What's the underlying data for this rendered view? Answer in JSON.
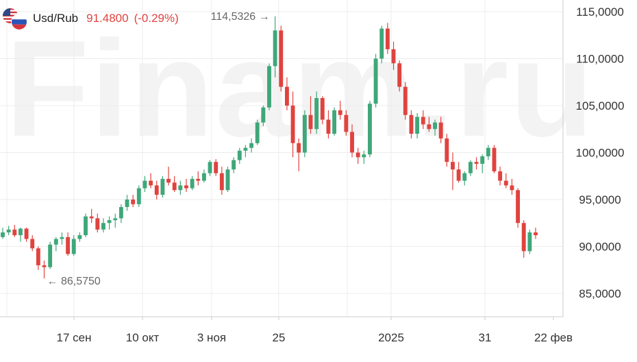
{
  "watermark": "Finam.ru",
  "header": {
    "pair": "Usd/Rub",
    "price": "91.4800",
    "change": "(-0.29%)"
  },
  "colors": {
    "up": "#3fa77a",
    "down": "#e0433f",
    "grid": "#ececec",
    "axis": "#cccccc"
  },
  "icons": {
    "us_flag": "us-flag-icon",
    "ru_flag": "ru-flag-icon"
  },
  "chart_data": {
    "type": "candlestick",
    "x_tick_labels": [
      "17 сен",
      "10 окт",
      "3 ноя",
      "25",
      "2025",
      "31",
      "22 фев"
    ],
    "y_tick_labels": [
      "115,0000",
      "110,0000",
      "105,0000",
      "100,0000",
      "95,0000",
      "90,0000",
      "85,0000"
    ],
    "ylim": [
      83,
      116
    ],
    "annotations": {
      "max": "114,5326",
      "min": "86,5750"
    },
    "candles": [
      [
        91.0,
        92.0,
        90.8,
        91.5
      ],
      [
        91.5,
        92.2,
        91.2,
        91.8
      ],
      [
        91.8,
        92.3,
        91.0,
        91.2
      ],
      [
        91.2,
        92.0,
        90.5,
        91.9
      ],
      [
        91.9,
        92.0,
        90.5,
        90.8
      ],
      [
        90.8,
        91.2,
        89.5,
        89.8
      ],
      [
        89.8,
        90.0,
        87.5,
        88.0
      ],
      [
        88.0,
        88.5,
        86.6,
        87.8
      ],
      [
        87.8,
        90.5,
        87.6,
        90.2
      ],
      [
        90.2,
        91.0,
        89.5,
        90.8
      ],
      [
        90.8,
        91.5,
        90.2,
        91.0
      ],
      [
        91.0,
        91.5,
        89.0,
        89.2
      ],
      [
        89.2,
        91.2,
        89.0,
        90.8
      ],
      [
        90.8,
        91.5,
        90.5,
        91.2
      ],
      [
        91.2,
        93.5,
        91.0,
        93.2
      ],
      [
        93.2,
        94.0,
        92.5,
        93.0
      ],
      [
        93.0,
        93.5,
        91.5,
        91.8
      ],
      [
        91.8,
        93.0,
        91.5,
        92.5
      ],
      [
        92.5,
        93.2,
        91.8,
        92.8
      ],
      [
        92.8,
        93.5,
        92.0,
        93.0
      ],
      [
        93.0,
        94.5,
        92.5,
        94.2
      ],
      [
        94.2,
        95.5,
        93.8,
        95.0
      ],
      [
        95.0,
        95.5,
        94.2,
        94.5
      ],
      [
        94.5,
        96.5,
        94.2,
        96.2
      ],
      [
        96.2,
        97.5,
        95.8,
        97.0
      ],
      [
        97.0,
        97.8,
        96.2,
        96.5
      ],
      [
        96.5,
        97.0,
        95.0,
        95.5
      ],
      [
        95.5,
        97.5,
        95.2,
        97.2
      ],
      [
        97.2,
        98.5,
        96.5,
        96.8
      ],
      [
        96.8,
        97.5,
        95.8,
        96.0
      ],
      [
        96.0,
        97.0,
        95.5,
        96.5
      ],
      [
        96.5,
        97.2,
        95.8,
        96.2
      ],
      [
        96.2,
        97.5,
        96.0,
        97.2
      ],
      [
        97.2,
        98.0,
        96.5,
        97.0
      ],
      [
        97.0,
        98.2,
        96.8,
        97.8
      ],
      [
        97.8,
        99.2,
        97.5,
        99.0
      ],
      [
        99.0,
        99.3,
        97.5,
        97.8
      ],
      [
        97.8,
        98.5,
        95.5,
        96.0
      ],
      [
        96.0,
        98.5,
        95.8,
        98.2
      ],
      [
        98.2,
        99.5,
        97.8,
        99.2
      ],
      [
        99.2,
        100.5,
        98.8,
        100.2
      ],
      [
        100.2,
        100.8,
        99.5,
        100.5
      ],
      [
        100.5,
        101.5,
        100.0,
        101.0
      ],
      [
        101.0,
        103.5,
        100.8,
        103.2
      ],
      [
        103.2,
        105.0,
        102.8,
        104.8
      ],
      [
        104.8,
        109.5,
        104.5,
        109.2
      ],
      [
        109.2,
        114.5,
        108.0,
        113.0
      ],
      [
        113.0,
        113.5,
        106.5,
        107.0
      ],
      [
        107.0,
        108.0,
        104.5,
        105.0
      ],
      [
        105.0,
        106.5,
        99.5,
        101.0
      ],
      [
        101.0,
        101.5,
        98.0,
        100.0
      ],
      [
        100.0,
        104.5,
        99.5,
        104.0
      ],
      [
        104.0,
        106.0,
        102.0,
        102.5
      ],
      [
        102.5,
        106.5,
        102.0,
        105.8
      ],
      [
        105.8,
        106.0,
        103.0,
        103.5
      ],
      [
        103.5,
        104.5,
        101.5,
        102.0
      ],
      [
        102.0,
        104.8,
        101.8,
        104.5
      ],
      [
        104.5,
        105.5,
        103.5,
        104.0
      ],
      [
        104.0,
        104.5,
        101.8,
        102.2
      ],
      [
        102.2,
        103.0,
        99.5,
        100.0
      ],
      [
        100.0,
        100.5,
        98.8,
        99.5
      ],
      [
        99.5,
        100.2,
        98.8,
        99.8
      ],
      [
        99.8,
        105.5,
        99.5,
        105.2
      ],
      [
        105.2,
        110.5,
        104.8,
        110.0
      ],
      [
        110.0,
        113.5,
        109.5,
        113.2
      ],
      [
        113.2,
        113.8,
        110.5,
        111.0
      ],
      [
        111.0,
        111.8,
        108.8,
        109.5
      ],
      [
        109.5,
        109.8,
        106.5,
        107.0
      ],
      [
        107.0,
        107.5,
        103.5,
        104.0
      ],
      [
        104.0,
        104.5,
        101.5,
        102.0
      ],
      [
        102.0,
        104.2,
        101.5,
        103.8
      ],
      [
        103.8,
        104.5,
        102.5,
        103.0
      ],
      [
        103.0,
        103.8,
        102.2,
        102.5
      ],
      [
        102.5,
        103.5,
        101.8,
        103.2
      ],
      [
        103.2,
        103.8,
        101.0,
        101.5
      ],
      [
        101.5,
        102.0,
        98.5,
        99.0
      ],
      [
        99.0,
        100.0,
        96.0,
        98.2
      ],
      [
        98.2,
        99.0,
        96.8,
        97.0
      ],
      [
        97.0,
        98.0,
        96.5,
        97.8
      ],
      [
        97.8,
        99.2,
        97.5,
        99.0
      ],
      [
        99.0,
        99.5,
        98.2,
        98.8
      ],
      [
        98.8,
        99.8,
        97.8,
        99.6
      ],
      [
        99.6,
        100.8,
        99.2,
        100.5
      ],
      [
        100.5,
        100.8,
        97.8,
        98.0
      ],
      [
        98.0,
        98.5,
        96.5,
        97.0
      ],
      [
        97.0,
        97.8,
        96.2,
        96.5
      ],
      [
        96.5,
        97.2,
        95.5,
        96.0
      ],
      [
        96.0,
        96.2,
        92.0,
        92.5
      ],
      [
        92.5,
        92.8,
        88.8,
        89.5
      ],
      [
        89.5,
        91.8,
        89.2,
        91.5
      ],
      [
        91.5,
        92.0,
        90.8,
        91.2
      ]
    ]
  }
}
